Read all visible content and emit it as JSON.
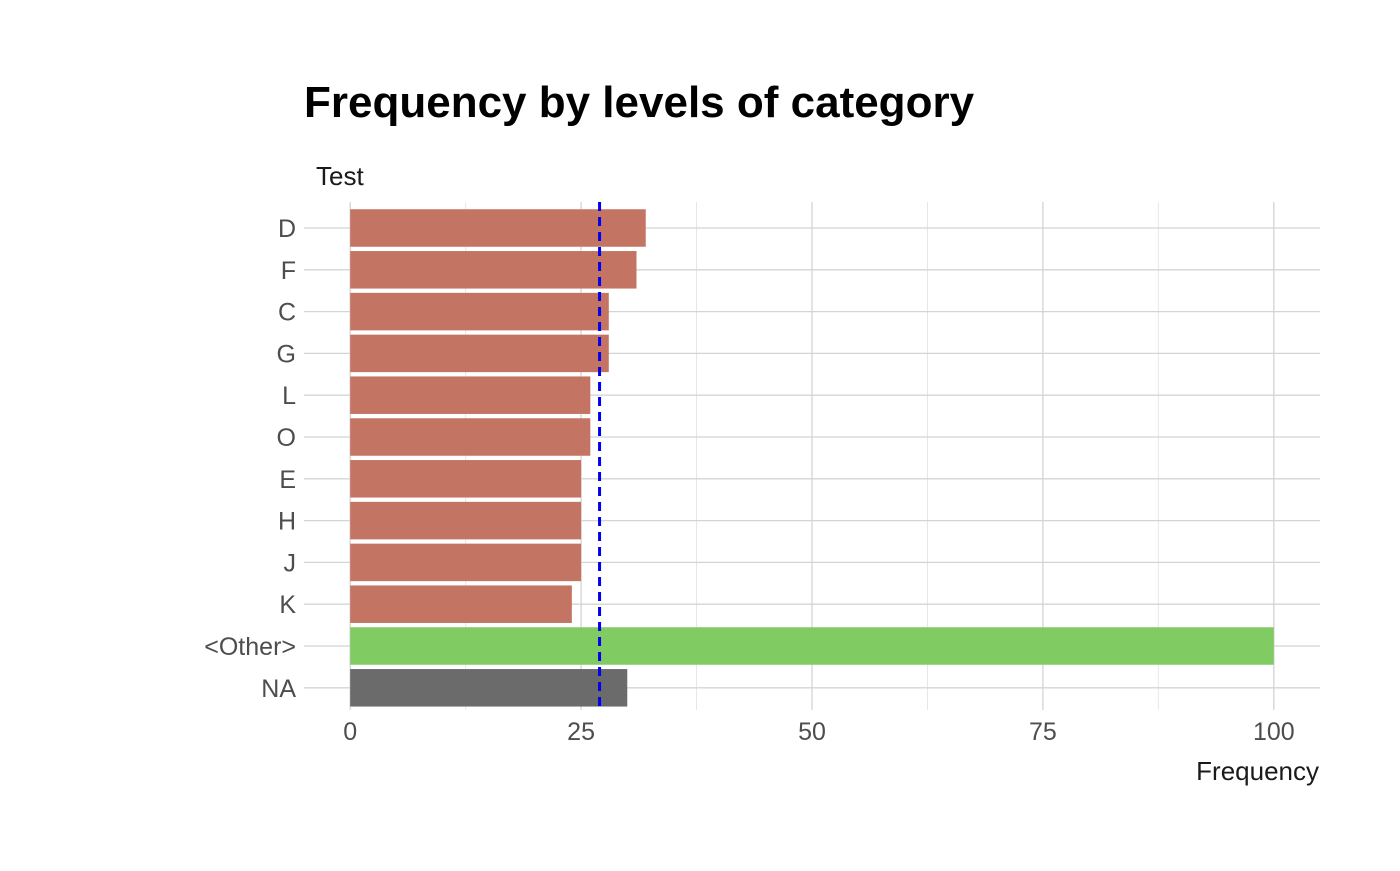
{
  "chart_data": {
    "type": "bar",
    "orientation": "horizontal",
    "title": "Frequency by levels of category",
    "ylabel": "Test",
    "xlabel": "Frequency",
    "categories": [
      "D",
      "F",
      "C",
      "G",
      "L",
      "O",
      "E",
      "H",
      "J",
      "K",
      "<Other>",
      "NA"
    ],
    "values": [
      32,
      31,
      28,
      28,
      26,
      26,
      25,
      25,
      25,
      24,
      100,
      30
    ],
    "bar_colors": [
      "#c47463",
      "#c47463",
      "#c47463",
      "#c47463",
      "#c47463",
      "#c47463",
      "#c47463",
      "#c47463",
      "#c47463",
      "#c47463",
      "#80cb62",
      "#6b6b6b"
    ],
    "x_ticks": [
      0,
      25,
      50,
      75,
      100
    ],
    "x_tick_labels": [
      "0",
      "25",
      "50",
      "75",
      "100"
    ],
    "xlim": [
      -5,
      105
    ],
    "reference_line": {
      "value": 27,
      "style": "dashed",
      "color": "#0000ee"
    },
    "grid": true,
    "legend": "none"
  }
}
